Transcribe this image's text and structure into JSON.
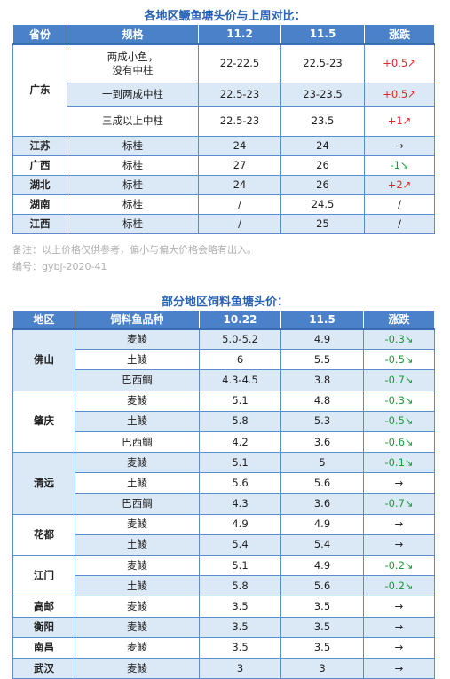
{
  "table1": {
    "title": "各地区鳜鱼塘头价与上周对比：",
    "headers": [
      "省份",
      "规格",
      "11.2",
      "11.5",
      "涨跌"
    ],
    "guangdong": {
      "region": "广东",
      "rows": [
        {
          "spec": "两成小鱼，\n没有中柱",
          "d1": "22-22.5",
          "d2": "22.5-23",
          "chg": "+0.5↗"
        },
        {
          "spec": "一到两成中柱",
          "d1": "22.5-23",
          "d2": "23-23.5",
          "chg": "+0.5↗"
        },
        {
          "spec": "三成以上中柱",
          "d1": "22.5-23",
          "d2": "23.5",
          "chg": "+1↗"
        }
      ]
    },
    "rows": [
      {
        "region": "江苏",
        "spec": "标桂",
        "d1": "24",
        "d2": "24",
        "chg": "→"
      },
      {
        "region": "广西",
        "spec": "标桂",
        "d1": "27",
        "d2": "26",
        "chg": "-1↘"
      },
      {
        "region": "湖北",
        "spec": "标桂",
        "d1": "24",
        "d2": "26",
        "chg": "+2↗"
      },
      {
        "region": "湖南",
        "spec": "标桂",
        "d1": "/",
        "d2": "24.5",
        "chg": "/"
      },
      {
        "region": "江西",
        "spec": "标桂",
        "d1": "/",
        "d2": "25",
        "chg": "/"
      }
    ]
  },
  "note": {
    "line1": "备注：以上价格仅供参考，偏小与偏大价格会略有出入。",
    "line2": "编号：gybj-2020-41"
  },
  "table2": {
    "title": "部分地区饲料鱼塘头价：",
    "headers": [
      "地区",
      "饲料鱼品种",
      "10.22",
      "11.5",
      "涨跌"
    ],
    "groups": [
      {
        "region": "佛山",
        "rows": [
          {
            "fish": "麦鲮",
            "d1": "5.0-5.2",
            "d2": "4.9",
            "chg": "-0.3↘"
          },
          {
            "fish": "土鲮",
            "d1": "6",
            "d2": "5.5",
            "chg": "-0.5↘"
          },
          {
            "fish": "巴西鲷",
            "d1": "4.3-4.5",
            "d2": "3.8",
            "chg": "-0.7↘"
          }
        ]
      },
      {
        "region": "肇庆",
        "rows": [
          {
            "fish": "麦鲮",
            "d1": "5.1",
            "d2": "4.8",
            "chg": "-0.3↘"
          },
          {
            "fish": "土鲮",
            "d1": "5.8",
            "d2": "5.3",
            "chg": "-0.5↘"
          },
          {
            "fish": "巴西鲷",
            "d1": "4.2",
            "d2": "3.6",
            "chg": "-0.6↘"
          }
        ]
      },
      {
        "region": "清远",
        "rows": [
          {
            "fish": "麦鲮",
            "d1": "5.1",
            "d2": "5",
            "chg": "-0.1↘"
          },
          {
            "fish": "土鲮",
            "d1": "5.6",
            "d2": "5.6",
            "chg": "→"
          },
          {
            "fish": "巴西鲷",
            "d1": "4.3",
            "d2": "3.6",
            "chg": "-0.7↘"
          }
        ]
      },
      {
        "region": "花都",
        "rows": [
          {
            "fish": "麦鲮",
            "d1": "4.9",
            "d2": "4.9",
            "chg": "→"
          },
          {
            "fish": "土鲮",
            "d1": "5.4",
            "d2": "5.4",
            "chg": "→"
          }
        ]
      },
      {
        "region": "江门",
        "rows": [
          {
            "fish": "麦鲮",
            "d1": "5.1",
            "d2": "4.9",
            "chg": "-0.2↘"
          },
          {
            "fish": "土鲮",
            "d1": "5.8",
            "d2": "5.6",
            "chg": "-0.2↘"
          }
        ]
      },
      {
        "region": "高邮",
        "rows": [
          {
            "fish": "麦鲮",
            "d1": "3.5",
            "d2": "3.5",
            "chg": "→"
          }
        ]
      },
      {
        "region": "衡阳",
        "rows": [
          {
            "fish": "麦鲮",
            "d1": "3.5",
            "d2": "3.5",
            "chg": "→"
          }
        ]
      },
      {
        "region": "南昌",
        "rows": [
          {
            "fish": "麦鲮",
            "d1": "3.5",
            "d2": "3.5",
            "chg": "→"
          }
        ]
      },
      {
        "region": "武汉",
        "rows": [
          {
            "fish": "麦鲮",
            "d1": "3",
            "d2": "3",
            "chg": "→"
          }
        ]
      }
    ]
  }
}
